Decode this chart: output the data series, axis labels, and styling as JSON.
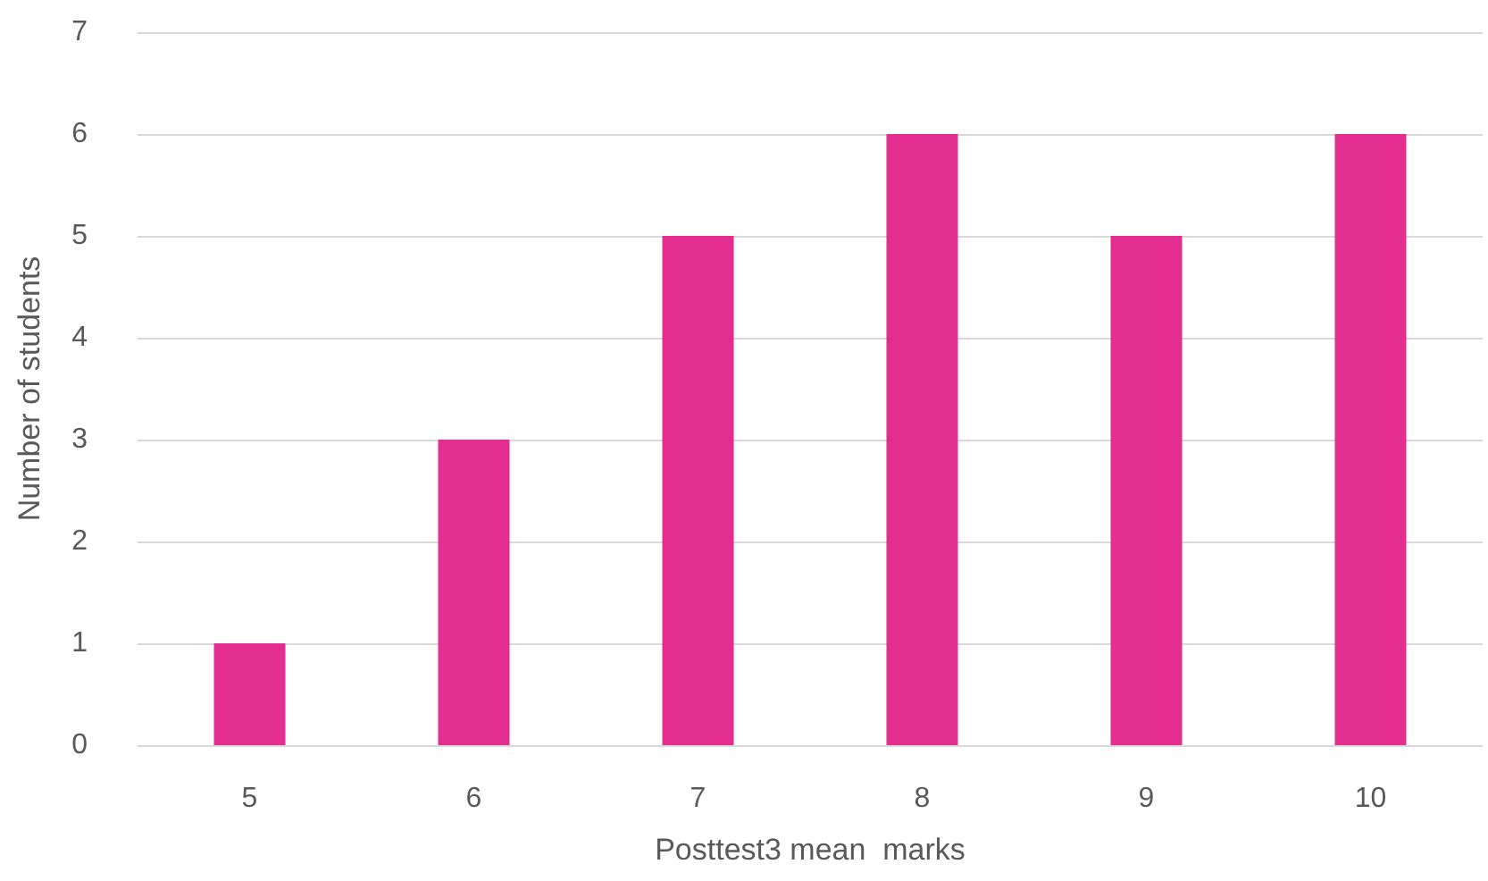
{
  "chart_data": {
    "type": "bar",
    "xlabel": "Posttest3 mean  marks",
    "ylabel": "Number of students",
    "categories": [
      "5",
      "6",
      "7",
      "8",
      "9",
      "10"
    ],
    "values": [
      1,
      3,
      5,
      6,
      5,
      6
    ],
    "color": "#e32d8f",
    "ylim": [
      0,
      7
    ],
    "yticks": [
      0,
      1,
      2,
      3,
      4,
      5,
      6,
      7
    ],
    "grid": "y"
  }
}
